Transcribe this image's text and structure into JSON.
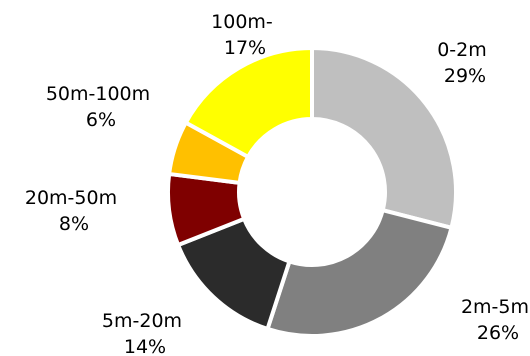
{
  "chart_data": {
    "type": "pie",
    "variant": "donut",
    "title": "",
    "legend": "none",
    "slices": [
      {
        "category": "0-2m",
        "value": 29,
        "label_line1": "0-2m",
        "label_line2": "29%",
        "color": "#bfbfbf"
      },
      {
        "category": "2m-5m",
        "value": 26,
        "label_line1": "2m-5m",
        "label_line2": "26%",
        "color": "#808080"
      },
      {
        "category": "5m-20m",
        "value": 14,
        "label_line1": "5m-20m",
        "label_line2": "14%",
        "color": "#2b2b2b"
      },
      {
        "category": "20m-50m",
        "value": 8,
        "label_line1": "20m-50m",
        "label_line2": "8%",
        "color": "#7f0000"
      },
      {
        "category": "50m-100m",
        "value": 6,
        "label_line1": "50m-100m",
        "label_line2": "6%",
        "color": "#ffc000"
      },
      {
        "category": "100m-",
        "value": 17,
        "label_line1": "100m-",
        "label_line2": "17%",
        "color": "#ffff00"
      }
    ],
    "slice_border_color": "#ffffff"
  }
}
